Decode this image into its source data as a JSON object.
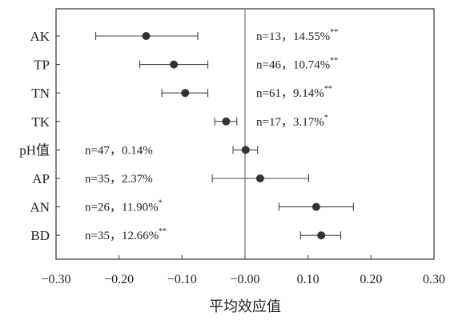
{
  "chart_data": {
    "type": "scatter",
    "subtype": "forest-plot",
    "title": "",
    "xlabel": "平均效应值",
    "ylabel": "",
    "xlim": [
      -0.3,
      0.3
    ],
    "xticks": [
      "-0.30",
      "-0.20",
      "-0.10",
      "-0.00",
      "0.10",
      "0.20",
      "0.30"
    ],
    "reference_line": 0,
    "grid": false,
    "colors": {
      "point": "#333333",
      "line": "#444444",
      "frame": "#333333"
    },
    "categories": [
      "AK",
      "TP",
      "TN",
      "TK",
      "pH值",
      "AP",
      "AN",
      "BD"
    ],
    "points": [
      {
        "label": "AK",
        "mean": -0.157,
        "ci_low": -0.237,
        "ci_high": -0.075,
        "n_text": "n=13，14.55%",
        "sig": "**",
        "annotation_side": "right"
      },
      {
        "label": "TP",
        "mean": -0.113,
        "ci_low": -0.167,
        "ci_high": -0.059,
        "n_text": "n=46，10.74%",
        "sig": "**",
        "annotation_side": "right"
      },
      {
        "label": "TN",
        "mean": -0.095,
        "ci_low": -0.132,
        "ci_high": -0.059,
        "n_text": "n=61，9.14%",
        "sig": "**",
        "annotation_side": "right"
      },
      {
        "label": "TK",
        "mean": -0.03,
        "ci_low": -0.048,
        "ci_high": -0.013,
        "n_text": "n=17，3.17%",
        "sig": "*",
        "annotation_side": "right"
      },
      {
        "label": "pH值",
        "mean": 0.001,
        "ci_low": -0.019,
        "ci_high": 0.02,
        "n_text": "n=47，0.14%",
        "sig": "",
        "annotation_side": "left"
      },
      {
        "label": "AP",
        "mean": 0.024,
        "ci_low": -0.052,
        "ci_high": 0.101,
        "n_text": "n=35，2.37%",
        "sig": "",
        "annotation_side": "left"
      },
      {
        "label": "AN",
        "mean": 0.113,
        "ci_low": 0.054,
        "ci_high": 0.172,
        "n_text": "n=26，11.90%",
        "sig": "*",
        "annotation_side": "left"
      },
      {
        "label": "BD",
        "mean": 0.121,
        "ci_low": 0.088,
        "ci_high": 0.152,
        "n_text": "n=35，12.66%",
        "sig": "**",
        "annotation_side": "left"
      }
    ]
  }
}
